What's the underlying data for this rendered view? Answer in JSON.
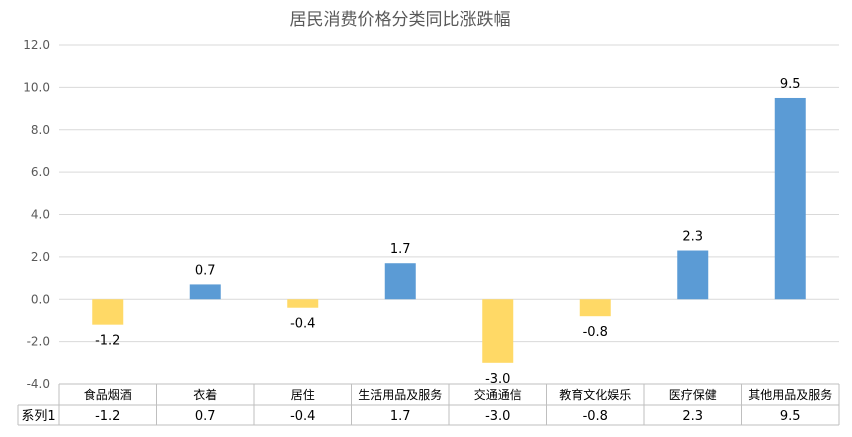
{
  "chart_data": {
    "type": "bar",
    "title": "居民消费价格分类同比涨跌幅",
    "categories": [
      "食品烟酒",
      "衣着",
      "居住",
      "生活用品及服务",
      "交通通信",
      "教育文化娱乐",
      "医疗保健",
      "其他用品及服务"
    ],
    "series": [
      {
        "name": "系列1",
        "values": [
          -1.2,
          0.7,
          -0.4,
          1.7,
          -3.0,
          -0.8,
          2.3,
          9.5
        ],
        "labels": [
          "-1.2",
          "0.7",
          "-0.4",
          "1.7",
          "-3.0",
          "-0.8",
          "2.3",
          "9.5"
        ]
      }
    ],
    "ylim": [
      -4.0,
      12.0
    ],
    "yticks": [
      "12.0",
      "10.0",
      "8.0",
      "6.0",
      "4.0",
      "2.0",
      "0.0",
      "-2.0",
      "-4.0"
    ],
    "ytick_values": [
      12,
      10,
      8,
      6,
      4,
      2,
      0,
      -2,
      -4
    ],
    "grid": true,
    "data_table": true,
    "colors": {
      "positive": "#5B9BD5",
      "negative": "#FFD966",
      "grid": "#D9D9D9",
      "axis_text": "#595959",
      "table_border": "#BFBFBF"
    }
  }
}
